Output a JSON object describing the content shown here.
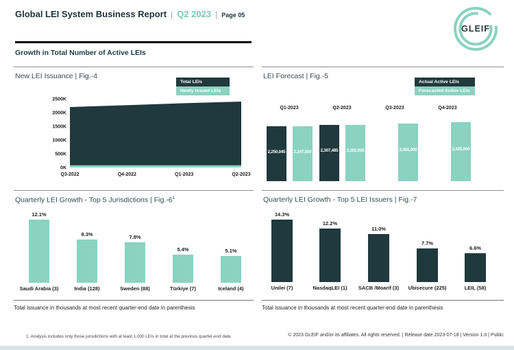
{
  "header": {
    "title": "Global LEI System Business Report",
    "sep": "|",
    "period": "Q2 2023",
    "page_label": "Page 05",
    "logo_text": "GLEIF"
  },
  "section_title": "Growth in Total Number of Active LEIs",
  "colors": {
    "dark": "#20393d",
    "teal": "#8bd2c1",
    "accent_text": "#7cc9b6"
  },
  "chart_data": [
    {
      "type": "area",
      "title": "New LEI Issuance | Fig.-4",
      "x": [
        "Q3-2022",
        "Q4-2022",
        "Q1-2023",
        "Q2-2023"
      ],
      "yticks": [
        "0K",
        "500K",
        "1000K",
        "1500K",
        "2000K",
        "2500K"
      ],
      "ylim_thousands": [
        0,
        2500
      ],
      "grid": false,
      "legend_position": "top-right",
      "series": [
        {
          "name": "Total LEIs",
          "color": "#20393d",
          "values_thousands": [
            2200,
            2270,
            2340,
            2400
          ]
        },
        {
          "name": "Newly Issued LEIs",
          "color": "#8bd2c1",
          "values_thousands": [
            60,
            60,
            60,
            60
          ]
        }
      ]
    },
    {
      "type": "bar",
      "title": "LEI Forecast | Fig.-5",
      "categories": [
        "Q1-2023",
        "Q2-2023",
        "Q3-2023",
        "Q4-2023"
      ],
      "legend_position": "top-right",
      "series": [
        {
          "name": "Actual Active LEIs",
          "color": "#20393d",
          "values": [
            2250045,
            2307485,
            null,
            null
          ],
          "labels": [
            "2,250,045",
            "2,307,485",
            "",
            ""
          ]
        },
        {
          "name": "Forecasted Active LEIs",
          "color": "#8bd2c1",
          "values": [
            2247000,
            2302000,
            2381000,
            2425000
          ],
          "labels": [
            "2,247,000",
            "2,302,000",
            "2,381,000",
            "2,425,000"
          ]
        }
      ]
    },
    {
      "type": "bar",
      "title": "Quarterly LEI Growth - Top 5 Jurisdictions | Fig.-6",
      "title_sup": "1",
      "categories": [
        "Saudi Arabia (3)",
        "India (128)",
        "Sweden (88)",
        "Türkiye (7)",
        "Iceland (4)"
      ],
      "values": [
        12.1,
        8.3,
        7.8,
        5.4,
        5.1
      ],
      "labels": [
        "12.1%",
        "8.3%",
        "7.8%",
        "5.4%",
        "5.1%"
      ],
      "bar_color": "#8bd2c1"
    },
    {
      "type": "bar",
      "title": "Quarterly LEI Growth - Top 5 LEI Issuers | Fig.-7",
      "categories": [
        "Unilei (7)",
        "NasdaqLEI (1)",
        "SACB /Moarif (3)",
        "Ubisecure (225)",
        "LEIL (58)"
      ],
      "values": [
        14.3,
        12.2,
        11.0,
        7.7,
        6.6
      ],
      "labels": [
        "14.3%",
        "12.2%",
        "11.0%",
        "7.7%",
        "6.6%"
      ],
      "bar_color": "#20393d"
    }
  ],
  "notes": {
    "left": "Total issuance in thousands at most recent quarter-end date in parenthesis",
    "right": "Total issuance in thousands at most recent quarter-end date in parenthesis"
  },
  "footnote": "1. Analysis includes only those jurisdictions with at least 1,000 LEIs in total at the previous quarter-end date.",
  "copyright": "© 2023 GLEIF and/or its affiliates. All rights reserved. | Release date 2023-07-18 | Version 1.0 | Public"
}
